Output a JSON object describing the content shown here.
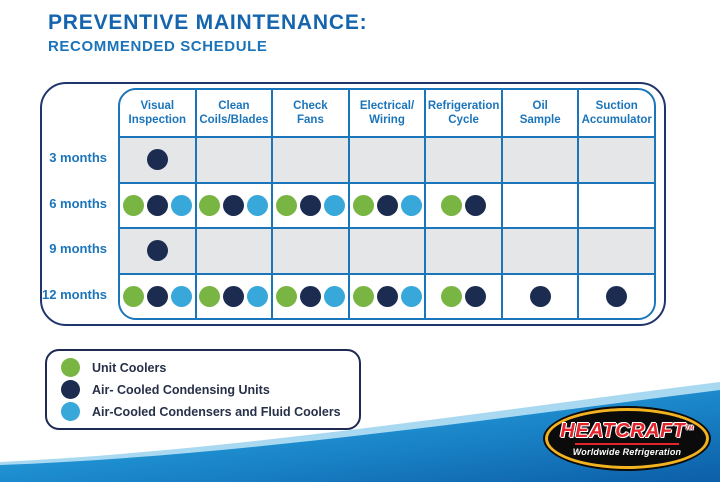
{
  "title": {
    "line1": "PREVENTIVE MAINTENANCE:",
    "line2": "RECOMMENDED SCHEDULE"
  },
  "colors": {
    "green": "#79b543",
    "navy": "#1b2c50",
    "lightblue": "#38a8da",
    "grid_blue": "#1b75bb",
    "outer_navy": "#20356b",
    "cell_gray": "#e5e6e7",
    "title_blue": "#1565ae",
    "swoosh_light": "#45b4e4",
    "swoosh_dark": "#0c5ea8"
  },
  "chart_data": {
    "type": "table",
    "title": "PREVENTIVE MAINTENANCE: RECOMMENDED SCHEDULE",
    "columns": [
      "Visual\nInspection",
      "Clean\nCoils/Blades",
      "Check\nFans",
      "Electrical/\nWiring",
      "Refrigeration\nCycle",
      "Oil\nSample",
      "Suction\nAccumulator"
    ],
    "rows": [
      "3 months",
      "6 months",
      "9 months",
      "12 months"
    ],
    "row_backgrounds": [
      "gray",
      "white",
      "gray",
      "white"
    ],
    "cells": [
      [
        [
          "navy"
        ],
        [],
        [],
        [],
        [],
        [],
        []
      ],
      [
        [
          "green",
          "navy",
          "lightblue"
        ],
        [
          "green",
          "navy",
          "lightblue"
        ],
        [
          "green",
          "navy",
          "lightblue"
        ],
        [
          "green",
          "navy",
          "lightblue"
        ],
        [
          "green",
          "navy"
        ],
        [],
        []
      ],
      [
        [
          "navy"
        ],
        [],
        [],
        [],
        [],
        [],
        []
      ],
      [
        [
          "green",
          "navy",
          "lightblue"
        ],
        [
          "green",
          "navy",
          "lightblue"
        ],
        [
          "green",
          "navy",
          "lightblue"
        ],
        [
          "green",
          "navy",
          "lightblue"
        ],
        [
          "green",
          "navy"
        ],
        [
          "navy"
        ],
        [
          "navy"
        ]
      ]
    ],
    "legend_position": "bottom-left"
  },
  "legend": {
    "items": [
      {
        "key": "green",
        "label": "Unit Coolers"
      },
      {
        "key": "navy",
        "label": "Air- Cooled Condensing Units"
      },
      {
        "key": "lightblue",
        "label": "Air-Cooled Condensers and Fluid Coolers"
      }
    ]
  },
  "logo": {
    "name": "HEATCRAFT",
    "tm": "TM",
    "tagline": "Worldwide Refrigeration"
  }
}
